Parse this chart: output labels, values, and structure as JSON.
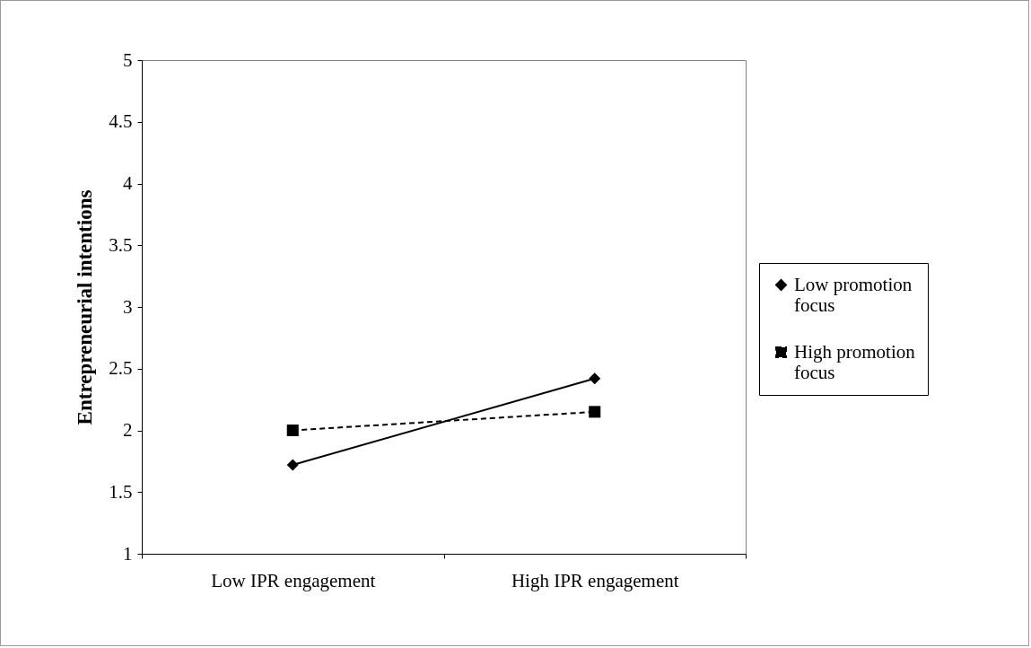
{
  "chart_data": {
    "type": "line",
    "ylabel": "Entrepreneurial intentions",
    "categories": [
      "Low IPR engagement",
      "High IPR engagement"
    ],
    "ylim": [
      1,
      5
    ],
    "yticks": [
      1,
      1.5,
      2,
      2.5,
      3,
      3.5,
      4,
      4.5,
      5
    ],
    "legend": "right",
    "series": [
      {
        "name": "Low promotion focus",
        "color": "#000000",
        "marker": "diamond",
        "line_style": "solid",
        "values": [
          1.72,
          2.42
        ]
      },
      {
        "name": "High promotion focus",
        "color": "#000000",
        "marker": "square",
        "line_style": "dashed",
        "values": [
          2.0,
          2.15
        ]
      }
    ]
  }
}
